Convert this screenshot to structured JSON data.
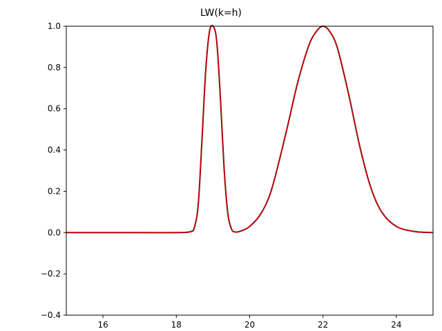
{
  "chart_data": {
    "type": "line",
    "title": "LW(k=h)",
    "xlabel": "",
    "ylabel": "",
    "xlim": [
      15,
      25
    ],
    "ylim": [
      -0.4,
      1.0
    ],
    "xticks": [
      16,
      18,
      20,
      22,
      24
    ],
    "xtick_labels": [
      "16",
      "18",
      "20",
      "22",
      "24"
    ],
    "yticks": [
      -0.4,
      -0.2,
      0.0,
      0.2,
      0.4,
      0.6,
      0.8,
      1.0
    ],
    "ytick_labels": [
      "−0.4",
      "−0.2",
      "0.0",
      "0.2",
      "0.4",
      "0.6",
      "0.8",
      "1.0"
    ],
    "grid": false,
    "series": [
      {
        "color": "#000000",
        "x": [
          15.0,
          16.0,
          17.0,
          18.0,
          18.4,
          18.5,
          18.6,
          18.7,
          18.8,
          18.9,
          19.0,
          19.1,
          19.2,
          19.3,
          19.4,
          19.5,
          19.6,
          19.8,
          20.0,
          20.3,
          20.6,
          21.0,
          21.3,
          21.6,
          21.8,
          22.0,
          22.2,
          22.4,
          22.7,
          23.0,
          23.3,
          23.6,
          24.0,
          24.5,
          25.0
        ],
        "y": [
          0.0,
          0.0,
          0.0,
          0.0,
          0.005,
          0.03,
          0.14,
          0.45,
          0.78,
          0.97,
          1.0,
          0.93,
          0.66,
          0.32,
          0.1,
          0.02,
          0.003,
          0.01,
          0.03,
          0.09,
          0.21,
          0.49,
          0.72,
          0.9,
          0.97,
          1.0,
          0.97,
          0.89,
          0.67,
          0.42,
          0.22,
          0.1,
          0.03,
          0.005,
          0.0
        ]
      },
      {
        "color": "#e00000",
        "x": [
          15.0,
          16.0,
          17.0,
          18.0,
          18.4,
          18.5,
          18.6,
          18.7,
          18.8,
          18.9,
          19.0,
          19.1,
          19.2,
          19.3,
          19.4,
          19.5,
          19.6,
          19.8,
          20.0,
          20.3,
          20.6,
          21.0,
          21.3,
          21.6,
          21.8,
          22.0,
          22.2,
          22.4,
          22.7,
          23.0,
          23.3,
          23.6,
          24.0,
          24.5,
          25.0
        ],
        "y": [
          0.0,
          0.0,
          0.0,
          0.0,
          0.005,
          0.03,
          0.14,
          0.45,
          0.78,
          0.97,
          1.0,
          0.93,
          0.66,
          0.32,
          0.1,
          0.02,
          0.003,
          0.01,
          0.03,
          0.09,
          0.21,
          0.49,
          0.72,
          0.9,
          0.97,
          1.0,
          0.97,
          0.89,
          0.67,
          0.42,
          0.22,
          0.1,
          0.03,
          0.005,
          0.0
        ]
      }
    ]
  }
}
